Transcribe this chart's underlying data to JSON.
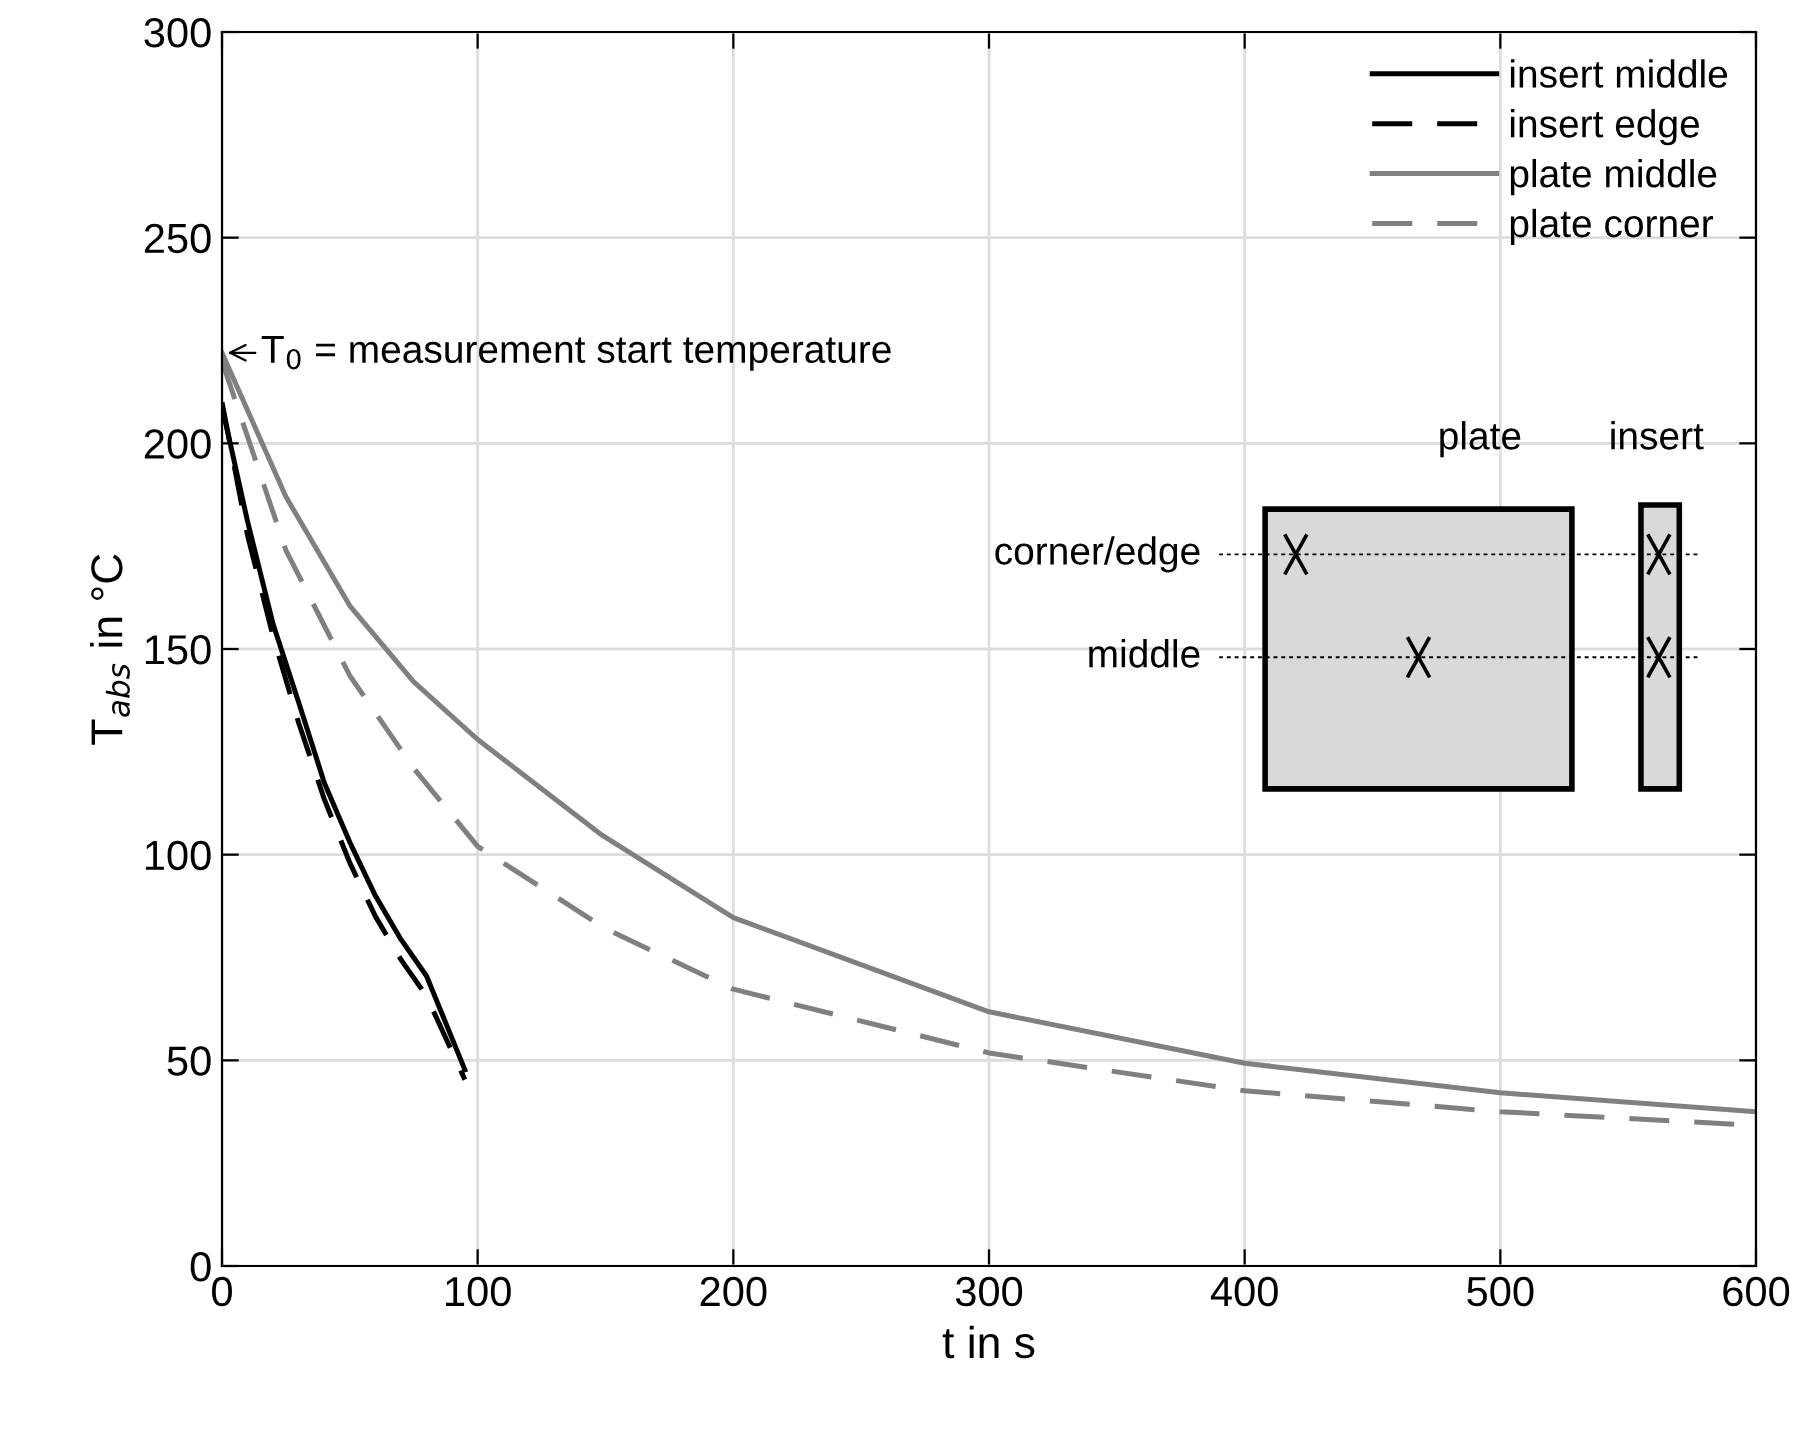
{
  "chart_data": {
    "type": "line",
    "xlabel": "t in s",
    "ylabel": "T$_{abs}$ in °C",
    "xlim": [
      0,
      600
    ],
    "ylim": [
      0,
      300
    ],
    "xticks": [
      0,
      100,
      200,
      300,
      400,
      500,
      600
    ],
    "yticks": [
      0,
      50,
      100,
      150,
      200,
      250,
      300
    ],
    "grid": true,
    "legend": "top right",
    "annotations": [
      {
        "text": "T$_{0}$ = measurement start temperature",
        "x": 0,
        "y": 222
      },
      "plate",
      "insert",
      "corner/edge",
      "middle"
    ],
    "series": [
      {
        "name": "insert middle",
        "color": "#000000",
        "line_style": "solid",
        "x": [
          0,
          10,
          20,
          30,
          40,
          50,
          60,
          70,
          80,
          95
        ],
        "values": [
          209,
          181,
          156,
          137,
          117.5,
          103,
          90,
          79.4,
          70.5,
          47.7
        ]
      },
      {
        "name": "insert edge",
        "color": "#000000",
        "line_style": "dashed",
        "x": [
          0,
          10,
          20,
          30,
          40,
          50,
          60,
          70,
          80,
          95
        ],
        "values": [
          210,
          177.6,
          153,
          132,
          113.5,
          98,
          85,
          74.5,
          65.6,
          45.3
        ]
      },
      {
        "name": "plate middle",
        "color": "#808080",
        "line_style": "solid",
        "x": [
          0,
          25,
          50,
          75,
          100,
          148,
          200,
          300,
          400,
          500,
          600
        ],
        "values": [
          222,
          187,
          160.5,
          142,
          128,
          105,
          84.7,
          61.8,
          49.3,
          42.1,
          37.5
        ]
      },
      {
        "name": "plate corner",
        "color": "#808080",
        "line_style": "dashed",
        "x": [
          0,
          25,
          50,
          75,
          100,
          150,
          200,
          300,
          400,
          500,
          600
        ],
        "values": [
          220,
          174,
          143.5,
          121,
          102,
          82,
          67.3,
          51.8,
          42.6,
          37.5,
          34.2
        ]
      }
    ]
  }
}
